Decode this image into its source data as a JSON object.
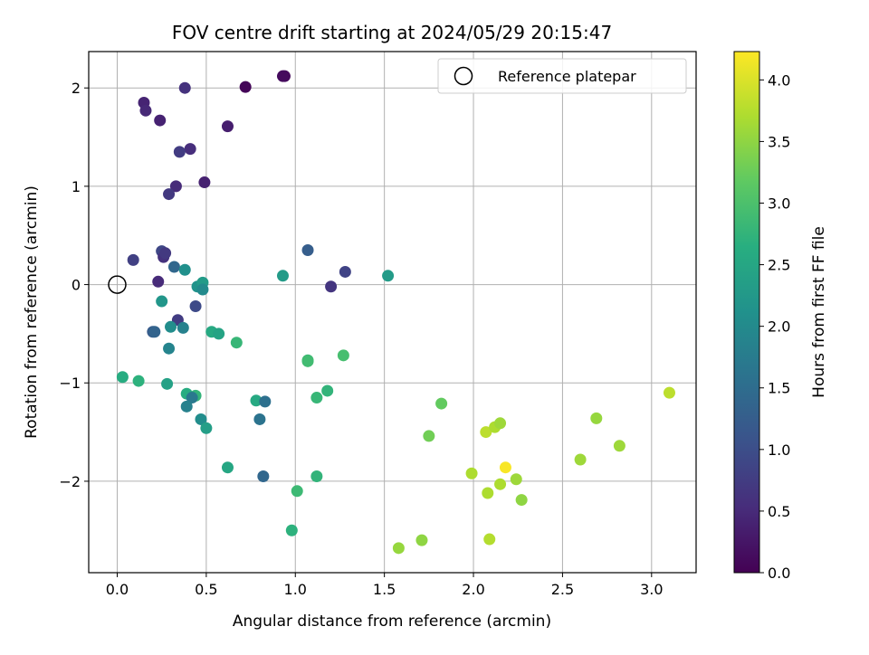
{
  "chart_data": {
    "type": "scatter",
    "title": "FOV centre drift starting at 2024/05/29 20:15:47",
    "xlabel": "Angular distance from reference (arcmin)",
    "ylabel": "Rotation from reference (arcmin)",
    "xlim": [
      -0.16,
      3.25
    ],
    "ylim": [
      -2.93,
      2.37
    ],
    "xticks": [
      0.0,
      0.5,
      1.0,
      1.5,
      2.0,
      2.5,
      3.0
    ],
    "xtick_labels": [
      "0.0",
      "0.5",
      "1.0",
      "1.5",
      "2.0",
      "2.5",
      "3.0"
    ],
    "yticks": [
      2,
      1,
      0,
      -1,
      -2
    ],
    "ytick_labels": [
      "2",
      "1",
      "0",
      "−1",
      "−2"
    ],
    "grid": true,
    "colormap": "viridis",
    "colorbar": {
      "label": "Hours from first FF file",
      "range": [
        0.0,
        4.23
      ],
      "ticks": [
        0.0,
        0.5,
        1.0,
        1.5,
        2.0,
        2.5,
        3.0,
        3.5,
        4.0
      ],
      "tick_labels": [
        "0.0",
        "0.5",
        "1.0",
        "1.5",
        "2.0",
        "2.5",
        "3.0",
        "3.5",
        "4.0"
      ]
    },
    "reference": {
      "label": "Reference platepar",
      "x": 0.0,
      "y": 0.0
    },
    "legend_position": "top-right",
    "points": [
      {
        "x": 0.72,
        "y": 2.01,
        "c": 0.05
      },
      {
        "x": 0.94,
        "y": 2.12,
        "c": 0.1
      },
      {
        "x": 0.62,
        "y": 1.61,
        "c": 0.35
      },
      {
        "x": 0.24,
        "y": 1.67,
        "c": 0.4
      },
      {
        "x": 0.15,
        "y": 1.85,
        "c": 0.42
      },
      {
        "x": 0.16,
        "y": 1.77,
        "c": 0.48
      },
      {
        "x": 0.38,
        "y": 2.0,
        "c": 0.6
      },
      {
        "x": 0.41,
        "y": 1.38,
        "c": 0.55
      },
      {
        "x": 0.35,
        "y": 1.35,
        "c": 0.75
      },
      {
        "x": 0.49,
        "y": 1.04,
        "c": 0.38
      },
      {
        "x": 0.33,
        "y": 1.0,
        "c": 0.5
      },
      {
        "x": 0.29,
        "y": 0.92,
        "c": 0.7
      },
      {
        "x": 0.93,
        "y": 2.12,
        "c": 0.12
      },
      {
        "x": 0.09,
        "y": 0.25,
        "c": 0.8
      },
      {
        "x": 0.25,
        "y": 0.34,
        "c": 0.9
      },
      {
        "x": 0.26,
        "y": 0.28,
        "c": 0.6
      },
      {
        "x": 0.27,
        "y": 0.32,
        "c": 0.7
      },
      {
        "x": 0.23,
        "y": 0.03,
        "c": 0.5
      },
      {
        "x": 0.32,
        "y": 0.18,
        "c": 1.4
      },
      {
        "x": 0.38,
        "y": 0.15,
        "c": 2.1
      },
      {
        "x": 0.44,
        "y": -0.22,
        "c": 0.95
      },
      {
        "x": 0.34,
        "y": -0.36,
        "c": 0.75
      },
      {
        "x": 0.2,
        "y": -0.48,
        "c": 1.2
      },
      {
        "x": 0.21,
        "y": -0.48,
        "c": 1.35
      },
      {
        "x": 0.25,
        "y": -0.17,
        "c": 2.2
      },
      {
        "x": 0.3,
        "y": -0.43,
        "c": 2.05
      },
      {
        "x": 0.37,
        "y": -0.44,
        "c": 1.85
      },
      {
        "x": 0.29,
        "y": -0.65,
        "c": 1.9
      },
      {
        "x": 0.45,
        "y": -0.02,
        "c": 2.15
      },
      {
        "x": 0.48,
        "y": 0.02,
        "c": 2.3
      },
      {
        "x": 0.48,
        "y": -0.05,
        "c": 2.0
      },
      {
        "x": 0.53,
        "y": -0.48,
        "c": 2.55
      },
      {
        "x": 0.57,
        "y": -0.5,
        "c": 2.45
      },
      {
        "x": 0.67,
        "y": -0.59,
        "c": 2.8
      },
      {
        "x": 0.93,
        "y": 0.09,
        "c": 2.3
      },
      {
        "x": 1.07,
        "y": 0.35,
        "c": 1.25
      },
      {
        "x": 1.2,
        "y": -0.02,
        "c": 0.65
      },
      {
        "x": 1.28,
        "y": 0.13,
        "c": 0.85
      },
      {
        "x": 1.52,
        "y": 0.09,
        "c": 2.3
      },
      {
        "x": 0.03,
        "y": -0.94,
        "c": 2.6
      },
      {
        "x": 0.12,
        "y": -0.98,
        "c": 2.7
      },
      {
        "x": 0.28,
        "y": -1.01,
        "c": 2.4
      },
      {
        "x": 0.39,
        "y": -1.11,
        "c": 2.6
      },
      {
        "x": 0.44,
        "y": -1.13,
        "c": 2.75
      },
      {
        "x": 0.42,
        "y": -1.15,
        "c": 1.7
      },
      {
        "x": 0.39,
        "y": -1.24,
        "c": 1.85
      },
      {
        "x": 0.47,
        "y": -1.37,
        "c": 2.05
      },
      {
        "x": 0.5,
        "y": -1.46,
        "c": 2.35
      },
      {
        "x": 0.78,
        "y": -1.18,
        "c": 2.55
      },
      {
        "x": 0.83,
        "y": -1.19,
        "c": 1.55
      },
      {
        "x": 0.8,
        "y": -1.37,
        "c": 1.6
      },
      {
        "x": 0.82,
        "y": -1.95,
        "c": 1.4
      },
      {
        "x": 0.62,
        "y": -1.86,
        "c": 2.5
      },
      {
        "x": 1.07,
        "y": -0.77,
        "c": 2.85
      },
      {
        "x": 1.07,
        "y": -0.78,
        "c": 2.9
      },
      {
        "x": 1.27,
        "y": -0.72,
        "c": 2.95
      },
      {
        "x": 1.12,
        "y": -1.15,
        "c": 2.8
      },
      {
        "x": 1.18,
        "y": -1.08,
        "c": 2.75
      },
      {
        "x": 1.12,
        "y": -1.95,
        "c": 2.75
      },
      {
        "x": 1.01,
        "y": -2.1,
        "c": 2.85
      },
      {
        "x": 0.98,
        "y": -2.5,
        "c": 2.7
      },
      {
        "x": 1.58,
        "y": -2.68,
        "c": 3.55
      },
      {
        "x": 1.71,
        "y": -2.6,
        "c": 3.5
      },
      {
        "x": 1.75,
        "y": -1.54,
        "c": 3.3
      },
      {
        "x": 1.82,
        "y": -1.21,
        "c": 3.2
      },
      {
        "x": 1.99,
        "y": -1.92,
        "c": 3.7
      },
      {
        "x": 2.07,
        "y": -1.5,
        "c": 3.8
      },
      {
        "x": 2.12,
        "y": -1.45,
        "c": 3.7
      },
      {
        "x": 2.15,
        "y": -1.41,
        "c": 3.6
      },
      {
        "x": 2.18,
        "y": -1.86,
        "c": 4.2
      },
      {
        "x": 2.08,
        "y": -2.12,
        "c": 3.7
      },
      {
        "x": 2.15,
        "y": -2.03,
        "c": 3.7
      },
      {
        "x": 2.24,
        "y": -1.98,
        "c": 3.6
      },
      {
        "x": 2.27,
        "y": -2.19,
        "c": 3.5
      },
      {
        "x": 2.09,
        "y": -2.59,
        "c": 3.75
      },
      {
        "x": 2.6,
        "y": -1.78,
        "c": 3.6
      },
      {
        "x": 2.69,
        "y": -1.36,
        "c": 3.55
      },
      {
        "x": 2.82,
        "y": -1.64,
        "c": 3.6
      },
      {
        "x": 3.1,
        "y": -1.1,
        "c": 3.8
      }
    ]
  }
}
